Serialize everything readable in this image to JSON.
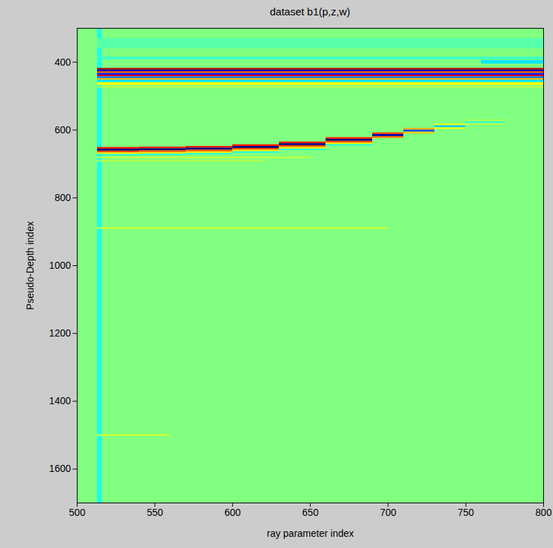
{
  "chart_data": {
    "type": "heatmap",
    "title": "dataset b1(p,z,w)",
    "x_label": "ray parameter index",
    "y_label": "Pseudo-Depth index",
    "xlim": [
      500,
      800
    ],
    "xticks": [
      500,
      550,
      600,
      650,
      700,
      750,
      800
    ],
    "ylim": [
      300,
      1700
    ],
    "yticks": [
      400,
      600,
      800,
      1000,
      1200,
      1400,
      1600
    ],
    "zlim": [
      -1,
      1
    ],
    "cells": [
      {
        "x1": 500,
        "x2": 800,
        "y1": 300,
        "y2": 1700,
        "value": 0
      },
      {
        "x1": 513,
        "x2": 516,
        "y1": 300,
        "y2": 1700,
        "value": -0.2
      },
      {
        "x1": 513,
        "x2": 800,
        "y1": 330,
        "y2": 360,
        "value": -0.08
      },
      {
        "x1": 513,
        "x2": 800,
        "y1": 385,
        "y2": 392,
        "value": -0.15
      },
      {
        "x1": 760,
        "x2": 800,
        "y1": 395,
        "y2": 405,
        "value": -0.3
      },
      {
        "x1": 513,
        "x2": 800,
        "y1": 418,
        "y2": 423,
        "value": 0.9
      },
      {
        "x1": 513,
        "x2": 800,
        "y1": 423,
        "y2": 428,
        "value": -0.9
      },
      {
        "x1": 513,
        "x2": 800,
        "y1": 428,
        "y2": 433,
        "value": 0.6
      },
      {
        "x1": 513,
        "x2": 800,
        "y1": 433,
        "y2": 438,
        "value": -0.7
      },
      {
        "x1": 513,
        "x2": 800,
        "y1": 438,
        "y2": 443,
        "value": 0.8
      },
      {
        "x1": 513,
        "x2": 800,
        "y1": 443,
        "y2": 448,
        "value": -0.5
      },
      {
        "x1": 513,
        "x2": 800,
        "y1": 448,
        "y2": 453,
        "value": 0.4
      },
      {
        "x1": 513,
        "x2": 800,
        "y1": 453,
        "y2": 460,
        "value": -0.3
      },
      {
        "x1": 513,
        "x2": 800,
        "y1": 460,
        "y2": 468,
        "value": 0.25
      },
      {
        "x1": 513,
        "x2": 800,
        "y1": 472,
        "y2": 476,
        "value": 0.12
      },
      {
        "x1": 513,
        "x2": 540,
        "y1": 651,
        "y2": 656,
        "value": 0.7
      },
      {
        "x1": 513,
        "x2": 540,
        "y1": 656,
        "y2": 662,
        "value": -1
      },
      {
        "x1": 513,
        "x2": 540,
        "y1": 662,
        "y2": 667,
        "value": 0.6
      },
      {
        "x1": 513,
        "x2": 540,
        "y1": 667,
        "y2": 672,
        "value": 0.3
      },
      {
        "x1": 513,
        "x2": 540,
        "y1": 672,
        "y2": 676,
        "value": -0.2
      },
      {
        "x1": 540,
        "x2": 570,
        "y1": 650,
        "y2": 655,
        "value": 0.7
      },
      {
        "x1": 540,
        "x2": 570,
        "y1": 655,
        "y2": 661,
        "value": -1
      },
      {
        "x1": 540,
        "x2": 570,
        "y1": 661,
        "y2": 666,
        "value": 0.6
      },
      {
        "x1": 540,
        "x2": 570,
        "y1": 666,
        "y2": 671,
        "value": 0.3
      },
      {
        "x1": 540,
        "x2": 570,
        "y1": 671,
        "y2": 675,
        "value": -0.2
      },
      {
        "x1": 570,
        "x2": 600,
        "y1": 648,
        "y2": 653,
        "value": 0.7
      },
      {
        "x1": 570,
        "x2": 600,
        "y1": 653,
        "y2": 659,
        "value": -1
      },
      {
        "x1": 570,
        "x2": 600,
        "y1": 659,
        "y2": 664,
        "value": 0.6
      },
      {
        "x1": 570,
        "x2": 600,
        "y1": 664,
        "y2": 669,
        "value": 0.3
      },
      {
        "x1": 570,
        "x2": 600,
        "y1": 669,
        "y2": 673,
        "value": -0.2
      },
      {
        "x1": 600,
        "x2": 630,
        "y1": 643,
        "y2": 648,
        "value": 0.7
      },
      {
        "x1": 600,
        "x2": 630,
        "y1": 648,
        "y2": 654,
        "value": -1
      },
      {
        "x1": 600,
        "x2": 630,
        "y1": 654,
        "y2": 659,
        "value": 0.6
      },
      {
        "x1": 600,
        "x2": 630,
        "y1": 659,
        "y2": 664,
        "value": 0.3
      },
      {
        "x1": 600,
        "x2": 630,
        "y1": 664,
        "y2": 668,
        "value": -0.2
      },
      {
        "x1": 630,
        "x2": 660,
        "y1": 635,
        "y2": 640,
        "value": 0.7
      },
      {
        "x1": 630,
        "x2": 660,
        "y1": 640,
        "y2": 646,
        "value": -1
      },
      {
        "x1": 630,
        "x2": 660,
        "y1": 646,
        "y2": 651,
        "value": 0.6
      },
      {
        "x1": 630,
        "x2": 660,
        "y1": 651,
        "y2": 656,
        "value": 0.3
      },
      {
        "x1": 630,
        "x2": 660,
        "y1": 656,
        "y2": 660,
        "value": -0.2
      },
      {
        "x1": 660,
        "x2": 690,
        "y1": 622,
        "y2": 627,
        "value": 0.7
      },
      {
        "x1": 660,
        "x2": 690,
        "y1": 627,
        "y2": 633,
        "value": -1
      },
      {
        "x1": 660,
        "x2": 690,
        "y1": 633,
        "y2": 638,
        "value": 0.6
      },
      {
        "x1": 660,
        "x2": 690,
        "y1": 638,
        "y2": 643,
        "value": 0.3
      },
      {
        "x1": 660,
        "x2": 690,
        "y1": 643,
        "y2": 647,
        "value": -0.2
      },
      {
        "x1": 690,
        "x2": 710,
        "y1": 608,
        "y2": 613,
        "value": 0.63
      },
      {
        "x1": 690,
        "x2": 710,
        "y1": 613,
        "y2": 619,
        "value": -0.9
      },
      {
        "x1": 690,
        "x2": 710,
        "y1": 619,
        "y2": 624,
        "value": 0.54
      },
      {
        "x1": 710,
        "x2": 730,
        "y1": 595,
        "y2": 600,
        "value": 0.42
      },
      {
        "x1": 710,
        "x2": 730,
        "y1": 600,
        "y2": 606,
        "value": -0.6
      },
      {
        "x1": 710,
        "x2": 730,
        "y1": 606,
        "y2": 611,
        "value": 0.36
      },
      {
        "x1": 730,
        "x2": 750,
        "y1": 582,
        "y2": 587,
        "value": 0.25
      },
      {
        "x1": 730,
        "x2": 750,
        "y1": 587,
        "y2": 593,
        "value": -0.35
      },
      {
        "x1": 730,
        "x2": 750,
        "y1": 593,
        "y2": 598,
        "value": 0.21
      },
      {
        "x1": 750,
        "x2": 775,
        "y1": 570,
        "y2": 575,
        "value": 0.1
      },
      {
        "x1": 750,
        "x2": 775,
        "y1": 575,
        "y2": 581,
        "value": -0.15
      },
      {
        "x1": 750,
        "x2": 775,
        "y1": 581,
        "y2": 586,
        "value": 0.1
      },
      {
        "x1": 513,
        "x2": 650,
        "y1": 680,
        "y2": 684,
        "value": 0.15
      },
      {
        "x1": 513,
        "x2": 620,
        "y1": 690,
        "y2": 694,
        "value": 0.12
      },
      {
        "x1": 513,
        "x2": 700,
        "y1": 888,
        "y2": 893,
        "value": 0.15
      },
      {
        "x1": 513,
        "x2": 560,
        "y1": 1498,
        "y2": 1503,
        "value": 0.15
      }
    ]
  }
}
